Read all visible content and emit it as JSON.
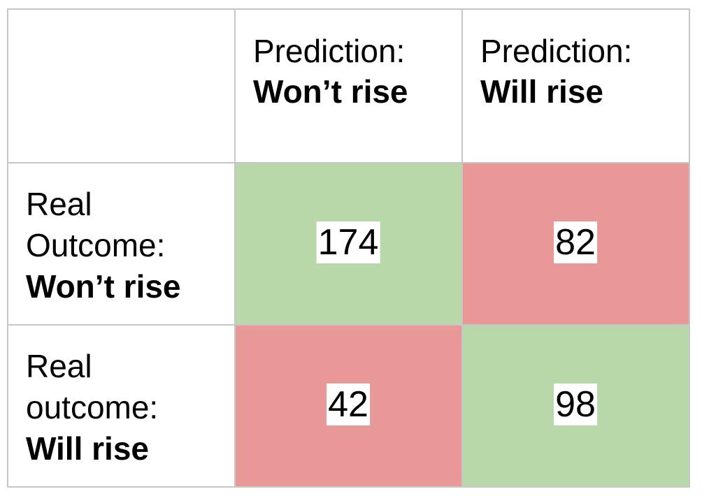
{
  "chart_data": {
    "type": "table",
    "columns": [
      {
        "prefix": "Prediction:",
        "label": "Won’t rise"
      },
      {
        "prefix": "Prediction:",
        "label": "Will rise"
      }
    ],
    "rows": [
      {
        "prefix_lines": [
          "Real",
          "Outcome:"
        ],
        "label": "Won’t rise"
      },
      {
        "prefix_lines": [
          "Real",
          "outcome:"
        ],
        "label": "Will rise"
      }
    ],
    "values": [
      [
        174,
        82
      ],
      [
        42,
        98
      ]
    ],
    "cell_status": [
      [
        "correct",
        "incorrect"
      ],
      [
        "incorrect",
        "correct"
      ]
    ]
  },
  "colors": {
    "correct": "#b8d8a9",
    "incorrect": "#e99898",
    "grid": "#c6c6c6",
    "text": "#000000"
  }
}
